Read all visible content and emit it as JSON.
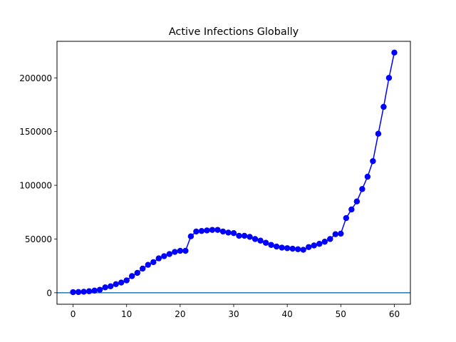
{
  "chart_data": {
    "type": "line",
    "title": "Active Infections Globally",
    "xlabel": "",
    "ylabel": "",
    "xlim": [
      -3,
      63
    ],
    "ylim": [
      -10700,
      234000
    ],
    "x_ticks": [
      0,
      10,
      20,
      30,
      40,
      50,
      60
    ],
    "y_ticks": [
      0,
      50000,
      100000,
      150000,
      200000
    ],
    "grid": false,
    "series": [
      {
        "color": "#0000ff",
        "marker": "circle",
        "x": [
          0,
          1,
          2,
          3,
          4,
          5,
          6,
          7,
          8,
          9,
          10,
          11,
          12,
          13,
          14,
          15,
          16,
          17,
          18,
          19,
          20,
          21,
          22,
          23,
          24,
          25,
          26,
          27,
          28,
          29,
          30,
          31,
          32,
          33,
          34,
          35,
          36,
          37,
          38,
          39,
          40,
          41,
          42,
          43,
          44,
          45,
          46,
          47,
          48,
          49,
          50,
          51,
          52,
          53,
          54,
          55,
          56,
          57,
          58,
          59,
          60
        ],
        "y": [
          555,
          654,
          941,
          1400,
          2000,
          2800,
          5000,
          6000,
          8000,
          9500,
          11500,
          15500,
          18500,
          22500,
          26000,
          28500,
          32000,
          34000,
          36000,
          38000,
          39000,
          39000,
          52500,
          57000,
          57500,
          58000,
          58500,
          58500,
          57000,
          56000,
          55500,
          53000,
          53000,
          52000,
          50000,
          48500,
          46500,
          44500,
          43000,
          42000,
          41500,
          41000,
          40500,
          40000,
          42500,
          44000,
          45500,
          47500,
          50000,
          54500,
          55000,
          69500,
          77500,
          85000,
          96500,
          108000,
          122500,
          148000,
          173000,
          200000,
          223500
        ]
      }
    ],
    "hline": {
      "y": 0,
      "color": "#1f77b4"
    },
    "colors": {
      "series": "#0000ff",
      "reference_line": "#1f77b4",
      "axes": "#000000",
      "background": "#ffffff"
    }
  }
}
